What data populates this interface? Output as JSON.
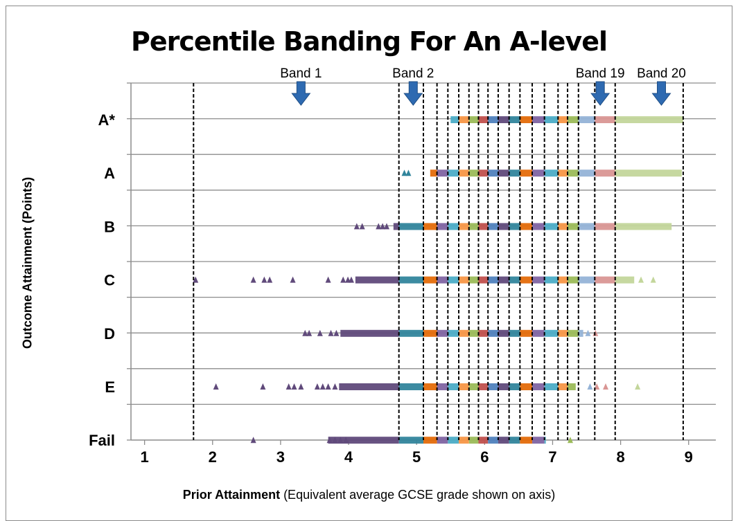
{
  "chart_data": {
    "type": "scatter",
    "title": "Percentile Banding For An A-level",
    "ylabel": "Outcome Attainment (Points)",
    "xlabel_bold": "Prior Attainment",
    "xlabel_rest": " (Equivalent average GCSE grade shown on axis)",
    "xlim": [
      0.8,
      9.4
    ],
    "xticks": [
      "1",
      "2",
      "3",
      "4",
      "5",
      "6",
      "7",
      "8",
      "9"
    ],
    "grades": [
      "A*",
      "A",
      "B",
      "C",
      "D",
      "E",
      "Fail"
    ],
    "band_lines": [
      1.72,
      4.74,
      5.1,
      5.3,
      5.46,
      5.62,
      5.77,
      5.91,
      6.05,
      6.2,
      6.36,
      6.52,
      6.7,
      6.88,
      7.08,
      7.22,
      7.38,
      7.62,
      7.92,
      8.92
    ],
    "band_labels": [
      {
        "label": "Band 1",
        "x": 3.3
      },
      {
        "label": "Band 2",
        "x": 4.95
      },
      {
        "label": "Band 19",
        "x": 7.7
      },
      {
        "label": "Band 20",
        "x": 8.6
      }
    ],
    "band_colors": [
      "#77933c",
      "#604a7b",
      "#31859c",
      "#e46c0a",
      "#8064a2",
      "#4bacc6",
      "#f79646",
      "#9bbb59",
      "#c0504d",
      "#4f81bd",
      "#604a7b",
      "#31859c",
      "#e46c0a",
      "#8064a2",
      "#4bacc6",
      "#f79646",
      "#9bbb59",
      "#95b3d7",
      "#d99694",
      "#c3d69b"
    ],
    "series": [
      {
        "grade": "A*",
        "ranges": [
          [
            5.5,
            8.92
          ]
        ],
        "points": []
      },
      {
        "grade": "A",
        "ranges": [
          [
            5.2,
            8.9
          ]
        ],
        "points": [
          4.82,
          4.88
        ]
      },
      {
        "grade": "B",
        "ranges": [
          [
            4.66,
            8.75
          ]
        ],
        "points": [
          4.12,
          4.2,
          4.44,
          4.5,
          4.56
        ]
      },
      {
        "grade": "C",
        "ranges": [
          [
            4.1,
            8.2
          ]
        ],
        "points": [
          1.75,
          2.6,
          2.76,
          2.84,
          3.18,
          3.7,
          3.92,
          3.99,
          4.04,
          8.3,
          8.48
        ]
      },
      {
        "grade": "D",
        "ranges": [
          [
            3.88,
            7.45
          ]
        ],
        "points": [
          3.36,
          3.42,
          3.58,
          3.74,
          3.82,
          7.52,
          7.63
        ]
      },
      {
        "grade": "E",
        "ranges": [
          [
            3.86,
            7.34
          ]
        ],
        "points": [
          2.05,
          2.74,
          3.12,
          3.2,
          3.3,
          3.54,
          3.62,
          3.7,
          3.8,
          7.55,
          7.65,
          7.78,
          8.25
        ]
      },
      {
        "grade": "Fail",
        "ranges": [
          [
            3.7,
            6.9
          ]
        ],
        "points": [
          2.6,
          3.72,
          3.8,
          3.88,
          3.96,
          7.26
        ]
      }
    ]
  }
}
